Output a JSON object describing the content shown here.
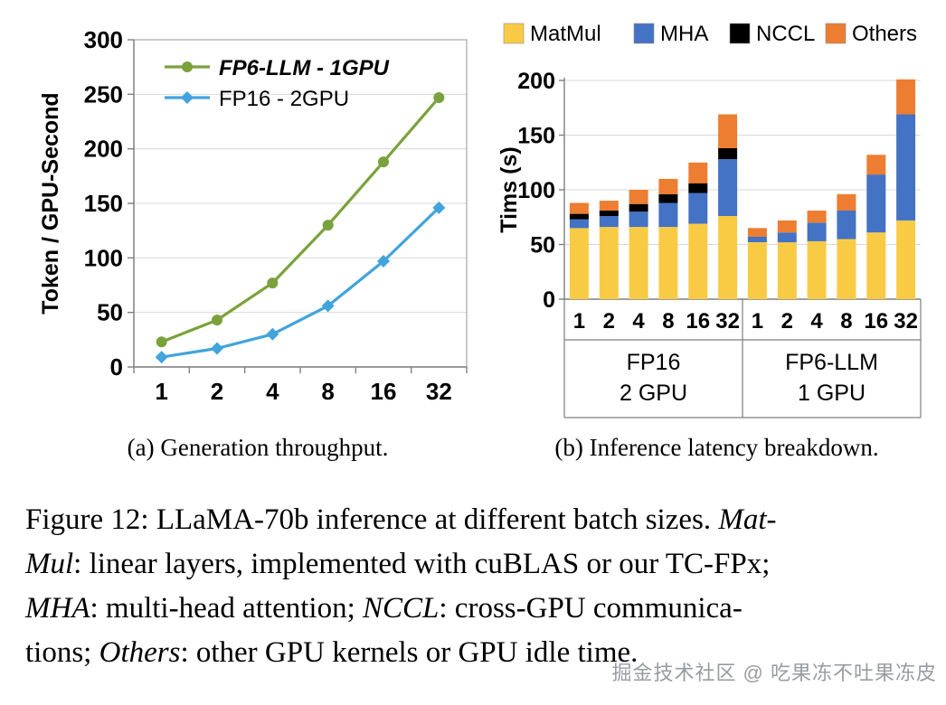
{
  "figure": {
    "subcaption_a": "(a) Generation throughput.",
    "subcaption_b": "(b) Inference latency breakdown.",
    "caption_lines": [
      [
        {
          "text": "Figure 12: LLaMA-70b inference at different batch sizes. ",
          "italic": false
        },
        {
          "text": "Mat-",
          "italic": true
        }
      ],
      [
        {
          "text": "Mul",
          "italic": true
        },
        {
          "text": ": linear layers, implemented with cuBLAS or our TC-FPx;",
          "italic": false
        }
      ],
      [
        {
          "text": "MHA",
          "italic": true
        },
        {
          "text": ": multi-head attention; ",
          "italic": false
        },
        {
          "text": "NCCL",
          "italic": true
        },
        {
          "text": ": cross-GPU communica-",
          "italic": false
        }
      ],
      [
        {
          "text": "tions; ",
          "italic": false
        },
        {
          "text": "Others",
          "italic": true
        },
        {
          "text": ": other GPU kernels or GPU idle time.",
          "italic": false
        }
      ]
    ],
    "watermark": "掘金技术社区 @ 吃果冻不吐果冻皮"
  },
  "chart_data": [
    {
      "type": "line",
      "title": "",
      "xlabel": "",
      "ylabel": "Token / GPU-Second",
      "categories": [
        "1",
        "2",
        "4",
        "8",
        "16",
        "32"
      ],
      "ylim": [
        0,
        300
      ],
      "ytick_step": 50,
      "grid": true,
      "legend_position": "top-left-inside",
      "series": [
        {
          "name": "FP6-LLM - 1GPU",
          "color": "#7AA23C",
          "marker": "circle",
          "bold_italic_label": true,
          "values": [
            23,
            43,
            77,
            130,
            188,
            247
          ]
        },
        {
          "name": "FP16 - 2GPU",
          "color": "#41A4DC",
          "marker": "diamond",
          "bold_italic_label": false,
          "values": [
            9,
            17,
            30,
            56,
            97,
            146
          ]
        }
      ]
    },
    {
      "type": "bar",
      "stacked": true,
      "title": "",
      "xlabel": "",
      "ylabel": "Tims (s)",
      "ylim": [
        0,
        200
      ],
      "ytick_step": 50,
      "grid": true,
      "legend_position": "top",
      "categories": [
        "1",
        "2",
        "4",
        "8",
        "16",
        "32",
        "1",
        "2",
        "4",
        "8",
        "16",
        "32"
      ],
      "groups": [
        {
          "line1": "FP16",
          "line2": "2 GPU",
          "span": 6
        },
        {
          "line1": "FP6-LLM",
          "line2": "1 GPU",
          "span": 6
        }
      ],
      "series": [
        {
          "name": "MatMul",
          "color": "#F9CB45",
          "values": [
            65,
            66,
            66,
            66,
            69,
            76,
            52,
            52,
            53,
            55,
            61,
            72
          ]
        },
        {
          "name": "MHA",
          "color": "#4472C4",
          "values": [
            8,
            10,
            14,
            22,
            28,
            52,
            5,
            9,
            17,
            26,
            53,
            97
          ]
        },
        {
          "name": "NCCL",
          "color": "#000000",
          "values": [
            5,
            5,
            7,
            8,
            9,
            10,
            0,
            0,
            0,
            0,
            0,
            0
          ]
        },
        {
          "name": "Others",
          "color": "#ED7D31",
          "values": [
            10,
            9,
            13,
            14,
            19,
            31,
            8,
            11,
            11,
            15,
            18,
            32
          ]
        }
      ]
    }
  ]
}
